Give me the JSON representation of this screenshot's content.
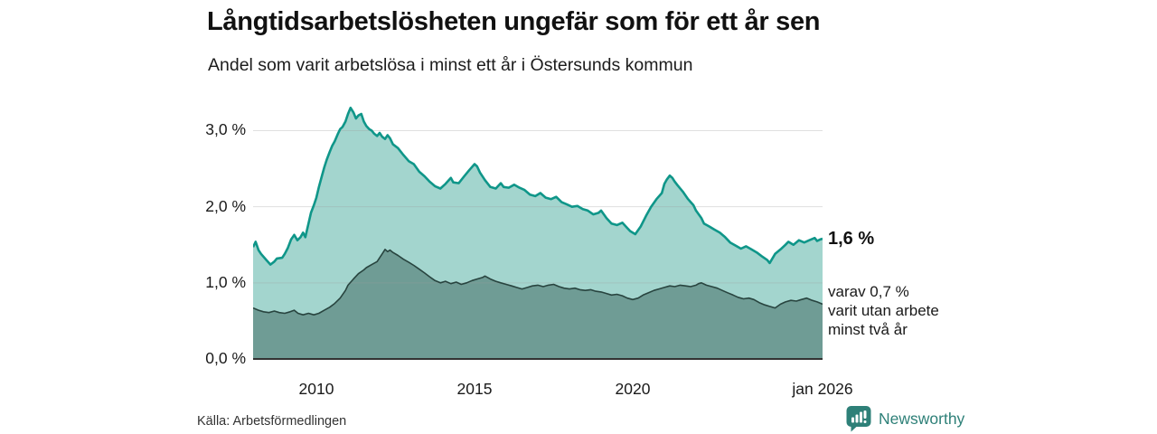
{
  "header": {
    "title": "Långtidsarbetslösheten ungefär som för ett år sen",
    "subtitle": "Andel som varit arbetslösa i minst ett år i Östersunds kommun"
  },
  "annotations": {
    "end_value_label": "1,6 %",
    "sub_line1": "varav 0,7 %",
    "sub_line2": "varit utan arbete",
    "sub_line3": "minst två år"
  },
  "footer": {
    "source": "Källa: Arbetsförmedlingen",
    "brand": "Newsworthy"
  },
  "colors": {
    "series1_line": "#0f9689",
    "series1_fill": "#a3d5ce",
    "series2_line": "#28443f",
    "series2_fill": "#6f9c95",
    "gridline": "#bdbdbd",
    "baseline": "#333333",
    "brand_teal": "#2e8078"
  },
  "chart_data": {
    "type": "area",
    "title": "Långtidsarbetslösheten ungefär som för ett år sen",
    "subtitle": "Andel som varit arbetslösa i minst ett år i Östersunds kommun",
    "grid": "horizontal-only",
    "legend_position": "none",
    "x_unit": "decimal_year",
    "xlim": [
      2008.0,
      2026.0
    ],
    "ylim": [
      0.0,
      3.5
    ],
    "y_ticks": [
      {
        "label": "3,0 %",
        "value": 3.0
      },
      {
        "label": "2,0 %",
        "value": 2.0
      },
      {
        "label": "1,0 %",
        "value": 1.0
      },
      {
        "label": "0,0 %",
        "value": 0.0
      }
    ],
    "x_ticks": [
      {
        "label": "2010",
        "value": 2010
      },
      {
        "label": "2015",
        "value": 2015
      },
      {
        "label": "2020",
        "value": 2020
      },
      {
        "label": "jan 2026",
        "value": 2026
      }
    ],
    "series": [
      {
        "name": "Andel arbetslösa minst ett år",
        "end_label": "1,6 %",
        "end_value": 1.6,
        "points": [
          [
            2008.0,
            1.47
          ],
          [
            2008.08,
            1.54
          ],
          [
            2008.17,
            1.43
          ],
          [
            2008.25,
            1.38
          ],
          [
            2008.42,
            1.3
          ],
          [
            2008.55,
            1.24
          ],
          [
            2008.67,
            1.28
          ],
          [
            2008.75,
            1.32
          ],
          [
            2008.92,
            1.33
          ],
          [
            2009.0,
            1.38
          ],
          [
            2009.1,
            1.46
          ],
          [
            2009.2,
            1.57
          ],
          [
            2009.3,
            1.63
          ],
          [
            2009.4,
            1.56
          ],
          [
            2009.5,
            1.6
          ],
          [
            2009.58,
            1.66
          ],
          [
            2009.65,
            1.6
          ],
          [
            2009.75,
            1.78
          ],
          [
            2009.83,
            1.92
          ],
          [
            2009.92,
            2.02
          ],
          [
            2010.0,
            2.12
          ],
          [
            2010.08,
            2.26
          ],
          [
            2010.17,
            2.4
          ],
          [
            2010.25,
            2.52
          ],
          [
            2010.33,
            2.62
          ],
          [
            2010.42,
            2.72
          ],
          [
            2010.5,
            2.8
          ],
          [
            2010.58,
            2.86
          ],
          [
            2010.67,
            2.95
          ],
          [
            2010.75,
            3.02
          ],
          [
            2010.83,
            3.05
          ],
          [
            2010.92,
            3.12
          ],
          [
            2011.0,
            3.22
          ],
          [
            2011.08,
            3.3
          ],
          [
            2011.17,
            3.24
          ],
          [
            2011.25,
            3.16
          ],
          [
            2011.33,
            3.2
          ],
          [
            2011.42,
            3.22
          ],
          [
            2011.5,
            3.12
          ],
          [
            2011.58,
            3.06
          ],
          [
            2011.67,
            3.02
          ],
          [
            2011.75,
            3.0
          ],
          [
            2011.83,
            2.96
          ],
          [
            2011.92,
            2.93
          ],
          [
            2012.0,
            2.97
          ],
          [
            2012.08,
            2.92
          ],
          [
            2012.17,
            2.89
          ],
          [
            2012.25,
            2.94
          ],
          [
            2012.33,
            2.9
          ],
          [
            2012.42,
            2.82
          ],
          [
            2012.58,
            2.77
          ],
          [
            2012.75,
            2.68
          ],
          [
            2012.92,
            2.6
          ],
          [
            2013.08,
            2.56
          ],
          [
            2013.25,
            2.46
          ],
          [
            2013.42,
            2.4
          ],
          [
            2013.58,
            2.33
          ],
          [
            2013.75,
            2.27
          ],
          [
            2013.92,
            2.24
          ],
          [
            2014.08,
            2.3
          ],
          [
            2014.25,
            2.38
          ],
          [
            2014.33,
            2.32
          ],
          [
            2014.5,
            2.31
          ],
          [
            2014.67,
            2.4
          ],
          [
            2014.83,
            2.48
          ],
          [
            2015.0,
            2.56
          ],
          [
            2015.08,
            2.53
          ],
          [
            2015.17,
            2.45
          ],
          [
            2015.33,
            2.35
          ],
          [
            2015.5,
            2.26
          ],
          [
            2015.67,
            2.24
          ],
          [
            2015.83,
            2.31
          ],
          [
            2015.92,
            2.26
          ],
          [
            2016.08,
            2.25
          ],
          [
            2016.25,
            2.29
          ],
          [
            2016.42,
            2.25
          ],
          [
            2016.58,
            2.22
          ],
          [
            2016.75,
            2.16
          ],
          [
            2016.92,
            2.14
          ],
          [
            2017.08,
            2.18
          ],
          [
            2017.25,
            2.12
          ],
          [
            2017.42,
            2.1
          ],
          [
            2017.58,
            2.13
          ],
          [
            2017.75,
            2.06
          ],
          [
            2017.92,
            2.03
          ],
          [
            2018.08,
            2.0
          ],
          [
            2018.25,
            2.01
          ],
          [
            2018.42,
            1.97
          ],
          [
            2018.58,
            1.95
          ],
          [
            2018.75,
            1.9
          ],
          [
            2018.92,
            1.92
          ],
          [
            2019.0,
            1.95
          ],
          [
            2019.17,
            1.85
          ],
          [
            2019.33,
            1.78
          ],
          [
            2019.5,
            1.76
          ],
          [
            2019.67,
            1.79
          ],
          [
            2019.83,
            1.72
          ],
          [
            2019.92,
            1.68
          ],
          [
            2020.08,
            1.64
          ],
          [
            2020.25,
            1.74
          ],
          [
            2020.42,
            1.88
          ],
          [
            2020.58,
            2.0
          ],
          [
            2020.75,
            2.1
          ],
          [
            2020.92,
            2.18
          ],
          [
            2021.0,
            2.3
          ],
          [
            2021.08,
            2.36
          ],
          [
            2021.17,
            2.41
          ],
          [
            2021.25,
            2.38
          ],
          [
            2021.33,
            2.33
          ],
          [
            2021.42,
            2.28
          ],
          [
            2021.58,
            2.2
          ],
          [
            2021.75,
            2.1
          ],
          [
            2021.92,
            2.02
          ],
          [
            2022.0,
            1.95
          ],
          [
            2022.17,
            1.85
          ],
          [
            2022.25,
            1.78
          ],
          [
            2022.42,
            1.74
          ],
          [
            2022.58,
            1.7
          ],
          [
            2022.75,
            1.66
          ],
          [
            2022.92,
            1.6
          ],
          [
            2023.08,
            1.53
          ],
          [
            2023.25,
            1.49
          ],
          [
            2023.42,
            1.45
          ],
          [
            2023.58,
            1.48
          ],
          [
            2023.75,
            1.44
          ],
          [
            2023.92,
            1.4
          ],
          [
            2024.08,
            1.35
          ],
          [
            2024.25,
            1.3
          ],
          [
            2024.33,
            1.26
          ],
          [
            2024.5,
            1.38
          ],
          [
            2024.67,
            1.44
          ],
          [
            2024.83,
            1.5
          ],
          [
            2024.92,
            1.54
          ],
          [
            2025.08,
            1.5
          ],
          [
            2025.25,
            1.56
          ],
          [
            2025.42,
            1.53
          ],
          [
            2025.58,
            1.56
          ],
          [
            2025.75,
            1.59
          ],
          [
            2025.83,
            1.55
          ],
          [
            2025.92,
            1.57
          ],
          [
            2026.0,
            1.58
          ]
        ]
      },
      {
        "name": "Varav utan arbete minst två år",
        "end_label": "varav 0,7 % varit utan arbete minst två år",
        "end_value": 0.7,
        "points": [
          [
            2008.0,
            0.67
          ],
          [
            2008.17,
            0.64
          ],
          [
            2008.33,
            0.62
          ],
          [
            2008.5,
            0.61
          ],
          [
            2008.67,
            0.63
          ],
          [
            2008.83,
            0.61
          ],
          [
            2009.0,
            0.6
          ],
          [
            2009.17,
            0.62
          ],
          [
            2009.3,
            0.64
          ],
          [
            2009.42,
            0.6
          ],
          [
            2009.58,
            0.58
          ],
          [
            2009.75,
            0.6
          ],
          [
            2009.92,
            0.58
          ],
          [
            2010.08,
            0.6
          ],
          [
            2010.25,
            0.64
          ],
          [
            2010.42,
            0.68
          ],
          [
            2010.58,
            0.73
          ],
          [
            2010.75,
            0.8
          ],
          [
            2010.92,
            0.9
          ],
          [
            2011.0,
            0.97
          ],
          [
            2011.17,
            1.05
          ],
          [
            2011.33,
            1.12
          ],
          [
            2011.5,
            1.17
          ],
          [
            2011.58,
            1.2
          ],
          [
            2011.75,
            1.24
          ],
          [
            2011.92,
            1.28
          ],
          [
            2012.0,
            1.33
          ],
          [
            2012.08,
            1.38
          ],
          [
            2012.17,
            1.44
          ],
          [
            2012.25,
            1.41
          ],
          [
            2012.33,
            1.43
          ],
          [
            2012.42,
            1.4
          ],
          [
            2012.58,
            1.36
          ],
          [
            2012.75,
            1.31
          ],
          [
            2012.92,
            1.27
          ],
          [
            2013.08,
            1.23
          ],
          [
            2013.25,
            1.18
          ],
          [
            2013.42,
            1.13
          ],
          [
            2013.58,
            1.08
          ],
          [
            2013.75,
            1.03
          ],
          [
            2013.92,
            1.0
          ],
          [
            2014.08,
            1.02
          ],
          [
            2014.25,
            0.99
          ],
          [
            2014.42,
            1.01
          ],
          [
            2014.58,
            0.98
          ],
          [
            2014.75,
            1.0
          ],
          [
            2014.92,
            1.03
          ],
          [
            2015.08,
            1.05
          ],
          [
            2015.25,
            1.07
          ],
          [
            2015.33,
            1.09
          ],
          [
            2015.5,
            1.05
          ],
          [
            2015.67,
            1.02
          ],
          [
            2015.83,
            1.0
          ],
          [
            2016.0,
            0.98
          ],
          [
            2016.17,
            0.96
          ],
          [
            2016.33,
            0.94
          ],
          [
            2016.5,
            0.92
          ],
          [
            2016.67,
            0.94
          ],
          [
            2016.83,
            0.96
          ],
          [
            2017.0,
            0.97
          ],
          [
            2017.17,
            0.95
          ],
          [
            2017.33,
            0.97
          ],
          [
            2017.5,
            0.98
          ],
          [
            2017.67,
            0.95
          ],
          [
            2017.83,
            0.93
          ],
          [
            2018.0,
            0.92
          ],
          [
            2018.17,
            0.93
          ],
          [
            2018.33,
            0.91
          ],
          [
            2018.5,
            0.9
          ],
          [
            2018.67,
            0.91
          ],
          [
            2018.83,
            0.89
          ],
          [
            2019.0,
            0.88
          ],
          [
            2019.17,
            0.86
          ],
          [
            2019.33,
            0.84
          ],
          [
            2019.5,
            0.85
          ],
          [
            2019.67,
            0.83
          ],
          [
            2019.83,
            0.8
          ],
          [
            2020.0,
            0.78
          ],
          [
            2020.17,
            0.8
          ],
          [
            2020.33,
            0.84
          ],
          [
            2020.5,
            0.87
          ],
          [
            2020.67,
            0.9
          ],
          [
            2020.83,
            0.92
          ],
          [
            2021.0,
            0.94
          ],
          [
            2021.17,
            0.96
          ],
          [
            2021.33,
            0.95
          ],
          [
            2021.5,
            0.97
          ],
          [
            2021.67,
            0.96
          ],
          [
            2021.83,
            0.95
          ],
          [
            2022.0,
            0.97
          ],
          [
            2022.08,
            0.99
          ],
          [
            2022.17,
            1.0
          ],
          [
            2022.33,
            0.97
          ],
          [
            2022.5,
            0.95
          ],
          [
            2022.67,
            0.93
          ],
          [
            2022.83,
            0.9
          ],
          [
            2023.0,
            0.87
          ],
          [
            2023.17,
            0.84
          ],
          [
            2023.33,
            0.81
          ],
          [
            2023.5,
            0.79
          ],
          [
            2023.67,
            0.8
          ],
          [
            2023.83,
            0.78
          ],
          [
            2024.0,
            0.74
          ],
          [
            2024.17,
            0.71
          ],
          [
            2024.33,
            0.69
          ],
          [
            2024.5,
            0.67
          ],
          [
            2024.67,
            0.72
          ],
          [
            2024.83,
            0.75
          ],
          [
            2025.0,
            0.77
          ],
          [
            2025.17,
            0.76
          ],
          [
            2025.33,
            0.78
          ],
          [
            2025.5,
            0.8
          ],
          [
            2025.67,
            0.77
          ],
          [
            2025.83,
            0.75
          ],
          [
            2026.0,
            0.72
          ]
        ]
      }
    ]
  }
}
